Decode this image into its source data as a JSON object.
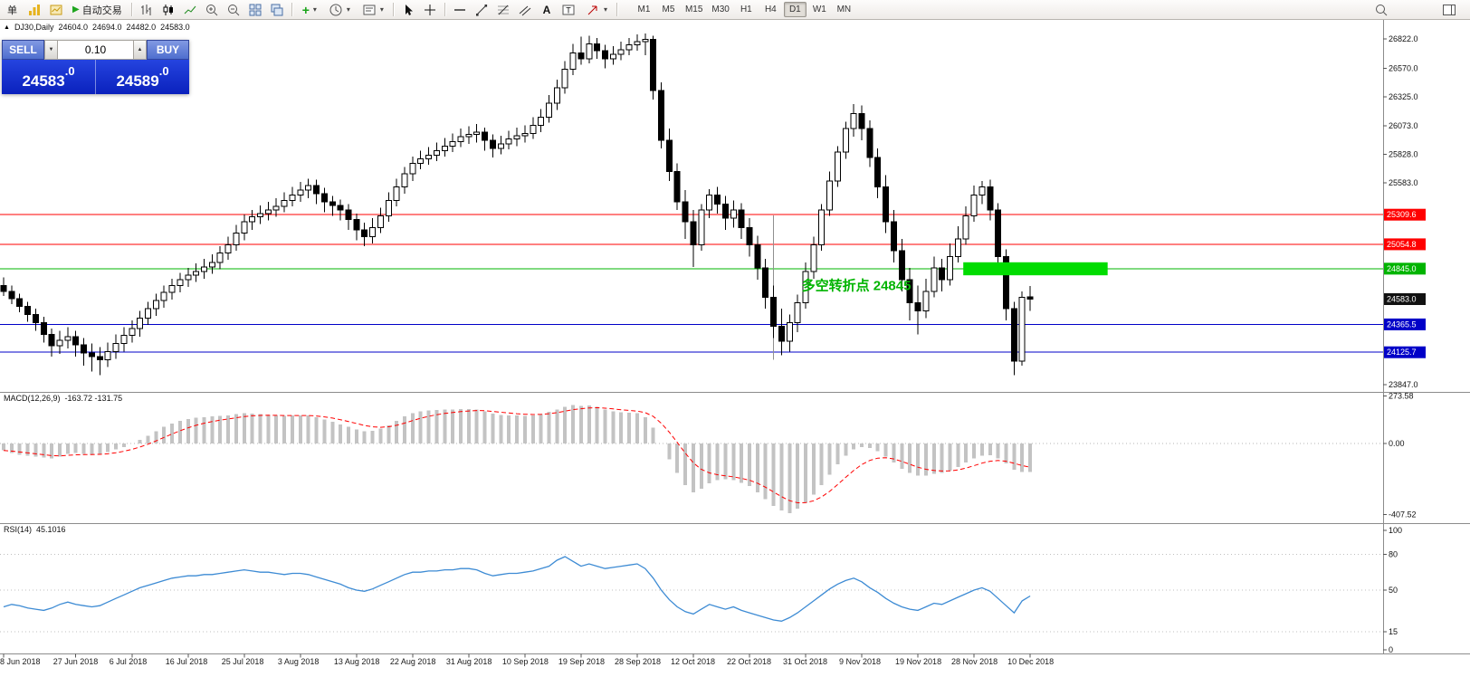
{
  "icons": {
    "dropdown": "▾",
    "play": "▶",
    "collapse": "▲",
    "spin_up": "▲",
    "spin_down": "▼"
  },
  "toolbar": {
    "new_order_label": "单",
    "autotrading_label": "自动交易",
    "timeframes": [
      "M1",
      "M5",
      "M15",
      "M30",
      "H1",
      "H4",
      "D1",
      "W1",
      "MN"
    ],
    "active_timeframe": "D1"
  },
  "symbol_bar": {
    "symbol": "DJ30,Daily",
    "ohlc": [
      "24604.0",
      "24694.0",
      "24482.0",
      "24583.0"
    ]
  },
  "trade_panel": {
    "sell_label": "SELL",
    "buy_label": "BUY",
    "lot": "0.10",
    "sell_price": {
      "main": "24583",
      "frac": ".0"
    },
    "buy_price": {
      "main": "24589",
      "frac": ".0"
    }
  },
  "annotation": {
    "text": "多空转折点 24845",
    "color": "#00b400",
    "anchor_index": 99.5,
    "price": 24660
  },
  "levels": [
    {
      "price": 25309.6,
      "label": "25309.6",
      "color": "#ff0000",
      "line": true
    },
    {
      "price": 25054.8,
      "label": "25054.8",
      "color": "#ff0000",
      "line": true
    },
    {
      "price": 24845.0,
      "label": "24845.0",
      "color": "#00b400",
      "line": true
    },
    {
      "price": 24583.0,
      "label": "24583.0",
      "color": "#111111",
      "line": false
    },
    {
      "price": 24365.5,
      "label": "24365.5",
      "color": "#0000c8",
      "line": true
    },
    {
      "price": 24125.7,
      "label": "24125.7",
      "color": "#0000c8",
      "line": true
    }
  ],
  "y_axis": {
    "ticks": [
      {
        "label": "26822.0",
        "value": 26822.0
      },
      {
        "label": "26570.0",
        "value": 26570.0
      },
      {
        "label": "26325.0",
        "value": 26325.0
      },
      {
        "label": "26073.0",
        "value": 26073.0
      },
      {
        "label": "25828.0",
        "value": 25828.0
      },
      {
        "label": "25583.0",
        "value": 25583.0
      },
      {
        "label": "23847.0",
        "value": 23847.0
      }
    ]
  },
  "macd_panel": {
    "name": "MACD(12,26,9)",
    "values_text": "-163.72 -131.75",
    "scale": [
      {
        "label": "273.58",
        "value": 273.58
      },
      {
        "label": "0.00",
        "value": 0
      },
      {
        "label": "-407.52",
        "value": -407.52
      }
    ]
  },
  "rsi_panel": {
    "name": "RSI(14)",
    "value_text": "45.1016",
    "scale": [
      {
        "label": "100",
        "value": 100
      },
      {
        "label": "80",
        "value": 80
      },
      {
        "label": "50",
        "value": 50
      },
      {
        "label": "15",
        "value": 15
      },
      {
        "label": "0",
        "value": 0
      }
    ],
    "level_lines": [
      80,
      50,
      15
    ]
  },
  "time_axis": {
    "labels": [
      "8 Jun 2018",
      "27 Jun 2018",
      "6 Jul 2018",
      "16 Jul 2018",
      "25 Jul 2018",
      "3 Aug 2018",
      "13 Aug 2018",
      "22 Aug 2018",
      "31 Aug 2018",
      "10 Sep 2018",
      "19 Sep 2018",
      "28 Sep 2018",
      "12 Oct 2018",
      "22 Oct 2018",
      "31 Oct 2018",
      "9 Nov 2018",
      "19 Nov 2018",
      "28 Nov 2018",
      "10 Dec 2018"
    ],
    "indices": [
      0,
      9,
      16,
      23,
      30,
      37,
      44,
      51,
      58,
      65,
      72,
      79,
      86,
      93,
      100,
      107,
      114,
      121,
      128
    ]
  },
  "chart_data": {
    "type": "candlestick",
    "symbol": "DJ30",
    "timeframe": "Daily",
    "title": "DJ30,Daily 24604.0 24694.0 24482.0 24583.0",
    "candles": [
      [
        24700,
        24770,
        24610,
        24650
      ],
      [
        24650,
        24700,
        24540,
        24585
      ],
      [
        24585,
        24630,
        24470,
        24520
      ],
      [
        24520,
        24560,
        24390,
        24450
      ],
      [
        24450,
        24500,
        24310,
        24380
      ],
      [
        24380,
        24430,
        24210,
        24280
      ],
      [
        24280,
        24330,
        24090,
        24180
      ],
      [
        24180,
        24310,
        24110,
        24230
      ],
      [
        24230,
        24340,
        24160,
        24260
      ],
      [
        24260,
        24310,
        24090,
        24190
      ],
      [
        24190,
        24250,
        24010,
        24120
      ],
      [
        24120,
        24200,
        23960,
        24090
      ],
      [
        24090,
        24170,
        23930,
        24060
      ],
      [
        24060,
        24210,
        24000,
        24130
      ],
      [
        24130,
        24280,
        24070,
        24200
      ],
      [
        24200,
        24340,
        24130,
        24270
      ],
      [
        24270,
        24400,
        24210,
        24330
      ],
      [
        24330,
        24480,
        24260,
        24420
      ],
      [
        24420,
        24560,
        24360,
        24500
      ],
      [
        24500,
        24630,
        24440,
        24570
      ],
      [
        24570,
        24700,
        24510,
        24640
      ],
      [
        24640,
        24760,
        24580,
        24700
      ],
      [
        24700,
        24810,
        24640,
        24750
      ],
      [
        24750,
        24850,
        24690,
        24790
      ],
      [
        24790,
        24890,
        24730,
        24820
      ],
      [
        24820,
        24930,
        24760,
        24860
      ],
      [
        24860,
        24970,
        24800,
        24900
      ],
      [
        24900,
        25040,
        24840,
        24980
      ],
      [
        24980,
        25120,
        24920,
        25050
      ],
      [
        25050,
        25220,
        25000,
        25150
      ],
      [
        25150,
        25310,
        25090,
        25250
      ],
      [
        25250,
        25350,
        25180,
        25290
      ],
      [
        25290,
        25390,
        25230,
        25320
      ],
      [
        25320,
        25420,
        25260,
        25350
      ],
      [
        25350,
        25450,
        25290,
        25380
      ],
      [
        25380,
        25500,
        25330,
        25430
      ],
      [
        25430,
        25550,
        25380,
        25480
      ],
      [
        25480,
        25590,
        25420,
        25520
      ],
      [
        25520,
        25620,
        25450,
        25560
      ],
      [
        25560,
        25610,
        25400,
        25490
      ],
      [
        25490,
        25540,
        25330,
        25420
      ],
      [
        25420,
        25470,
        25300,
        25390
      ],
      [
        25390,
        25440,
        25260,
        25350
      ],
      [
        25350,
        25400,
        25180,
        25270
      ],
      [
        25270,
        25320,
        25090,
        25180
      ],
      [
        25180,
        25240,
        25040,
        25120
      ],
      [
        25120,
        25280,
        25060,
        25200
      ],
      [
        25200,
        25370,
        25150,
        25300
      ],
      [
        25300,
        25500,
        25250,
        25430
      ],
      [
        25430,
        25620,
        25380,
        25550
      ],
      [
        25550,
        25720,
        25490,
        25660
      ],
      [
        25660,
        25810,
        25600,
        25750
      ],
      [
        25750,
        25860,
        25700,
        25790
      ],
      [
        25790,
        25890,
        25740,
        25820
      ],
      [
        25820,
        25930,
        25770,
        25860
      ],
      [
        25860,
        25970,
        25810,
        25900
      ],
      [
        25900,
        26010,
        25850,
        25940
      ],
      [
        25940,
        26050,
        25890,
        25980
      ],
      [
        25980,
        26070,
        25920,
        26000
      ],
      [
        26000,
        26090,
        25930,
        26020
      ],
      [
        26020,
        26060,
        25860,
        25950
      ],
      [
        25950,
        26000,
        25800,
        25880
      ],
      [
        25880,
        25990,
        25830,
        25920
      ],
      [
        25920,
        26030,
        25870,
        25960
      ],
      [
        25960,
        26060,
        25900,
        25990
      ],
      [
        25990,
        26080,
        25930,
        26010
      ],
      [
        26010,
        26150,
        25960,
        26080
      ],
      [
        26080,
        26220,
        26020,
        26150
      ],
      [
        26150,
        26340,
        26100,
        26270
      ],
      [
        26270,
        26470,
        26210,
        26400
      ],
      [
        26400,
        26630,
        26350,
        26560
      ],
      [
        26560,
        26780,
        26510,
        26700
      ],
      [
        26700,
        26840,
        26600,
        26650
      ],
      [
        26650,
        26850,
        26610,
        26780
      ],
      [
        26780,
        26830,
        26650,
        26720
      ],
      [
        26720,
        26770,
        26570,
        26650
      ],
      [
        26650,
        26760,
        26600,
        26690
      ],
      [
        26690,
        26800,
        26640,
        26730
      ],
      [
        26730,
        26830,
        26680,
        26770
      ],
      [
        26770,
        26860,
        26720,
        26800
      ],
      [
        26800,
        26870,
        26680,
        26820
      ],
      [
        26820,
        26850,
        26300,
        26380
      ],
      [
        26380,
        26450,
        25880,
        25950
      ],
      [
        25950,
        26050,
        25600,
        25680
      ],
      [
        25680,
        25750,
        25350,
        25420
      ],
      [
        25420,
        25520,
        25100,
        25250
      ],
      [
        25250,
        25350,
        24860,
        25050
      ],
      [
        25050,
        25400,
        25000,
        25350
      ],
      [
        25350,
        25530,
        25280,
        25480
      ],
      [
        25480,
        25550,
        25320,
        25400
      ],
      [
        25400,
        25470,
        25180,
        25280
      ],
      [
        25280,
        25430,
        25200,
        25350
      ],
      [
        25350,
        25410,
        25100,
        25200
      ],
      [
        25200,
        25280,
        24950,
        25050
      ],
      [
        25050,
        25130,
        24750,
        24850
      ],
      [
        24850,
        24930,
        24500,
        24600
      ],
      [
        24600,
        24700,
        24250,
        24350
      ],
      [
        24350,
        24500,
        24100,
        24220
      ],
      [
        24220,
        24450,
        24130,
        24380
      ],
      [
        24380,
        24620,
        24300,
        24550
      ],
      [
        24550,
        24900,
        24500,
        24820
      ],
      [
        24820,
        25120,
        24760,
        25050
      ],
      [
        25050,
        25400,
        25000,
        25350
      ],
      [
        25350,
        25680,
        25300,
        25600
      ],
      [
        25600,
        25900,
        25550,
        25850
      ],
      [
        25850,
        26110,
        25790,
        26050
      ],
      [
        26050,
        26260,
        25980,
        26180
      ],
      [
        26180,
        26250,
        25950,
        26050
      ],
      [
        26050,
        26120,
        25720,
        25800
      ],
      [
        25800,
        25880,
        25450,
        25550
      ],
      [
        25550,
        25650,
        25150,
        25250
      ],
      [
        25250,
        25350,
        24900,
        25000
      ],
      [
        25000,
        25100,
        24650,
        24750
      ],
      [
        24750,
        24850,
        24400,
        24550
      ],
      [
        24550,
        24700,
        24280,
        24480
      ],
      [
        24480,
        24760,
        24420,
        24650
      ],
      [
        24650,
        24950,
        24600,
        24850
      ],
      [
        24850,
        24930,
        24650,
        24750
      ],
      [
        24750,
        25060,
        24700,
        24950
      ],
      [
        24950,
        25210,
        24900,
        25100
      ],
      [
        25100,
        25380,
        25050,
        25300
      ],
      [
        25300,
        25560,
        25250,
        25480
      ],
      [
        25480,
        25600,
        25400,
        25550
      ],
      [
        25550,
        25610,
        25260,
        25350
      ],
      [
        25350,
        25410,
        24850,
        24950
      ],
      [
        24950,
        25010,
        24400,
        24500
      ],
      [
        24500,
        24560,
        23930,
        24050
      ],
      [
        24050,
        24650,
        24010,
        24600
      ],
      [
        24604,
        24694,
        24482,
        24583
      ]
    ],
    "macd": [
      -40,
      -55,
      -65,
      -70,
      -75,
      -80,
      -85,
      -75,
      -60,
      -55,
      -60,
      -62,
      -60,
      -50,
      -35,
      -20,
      0,
      20,
      45,
      70,
      95,
      115,
      130,
      140,
      148,
      152,
      155,
      158,
      162,
      168,
      175,
      172,
      168,
      165,
      160,
      158,
      160,
      162,
      160,
      150,
      138,
      125,
      110,
      95,
      80,
      70,
      72,
      85,
      105,
      130,
      155,
      175,
      185,
      190,
      193,
      195,
      196,
      197,
      198,
      196,
      185,
      172,
      165,
      162,
      160,
      158,
      162,
      170,
      182,
      196,
      210,
      222,
      215,
      218,
      210,
      195,
      185,
      180,
      178,
      175,
      150,
      90,
      0,
      -90,
      -170,
      -240,
      -280,
      -260,
      -230,
      -210,
      -205,
      -210,
      -225,
      -245,
      -280,
      -320,
      -360,
      -385,
      -400,
      -375,
      -340,
      -295,
      -240,
      -180,
      -120,
      -70,
      -35,
      -20,
      -25,
      -45,
      -75,
      -110,
      -145,
      -170,
      -185,
      -185,
      -175,
      -168,
      -155,
      -135,
      -110,
      -85,
      -70,
      -68,
      -85,
      -115,
      -150,
      -165,
      -164
    ],
    "rsi": [
      36,
      38,
      37,
      35,
      34,
      33,
      35,
      38,
      40,
      38,
      37,
      36,
      37,
      40,
      43,
      46,
      49,
      52,
      54,
      56,
      58,
      60,
      61,
      62,
      62,
      63,
      63,
      64,
      65,
      66,
      67,
      66,
      65,
      65,
      64,
      63,
      64,
      64,
      63,
      61,
      59,
      57,
      55,
      52,
      50,
      49,
      51,
      54,
      57,
      60,
      63,
      65,
      65,
      66,
      66,
      67,
      67,
      68,
      68,
      67,
      64,
      62,
      63,
      64,
      64,
      65,
      66,
      68,
      70,
      75,
      78,
      74,
      70,
      72,
      70,
      68,
      69,
      70,
      71,
      72,
      68,
      60,
      50,
      42,
      36,
      32,
      30,
      34,
      38,
      36,
      34,
      36,
      33,
      31,
      29,
      27,
      25,
      24,
      27,
      31,
      36,
      41,
      46,
      51,
      55,
      58,
      60,
      57,
      52,
      48,
      43,
      39,
      36,
      34,
      33,
      36,
      39,
      38,
      41,
      44,
      47,
      50,
      52,
      49,
      43,
      37,
      31,
      41,
      45.1
    ],
    "highlight_box": {
      "from_index": 120,
      "to_index": 138,
      "price_top": 24900,
      "price_bottom": 24788,
      "color": "#00dc00"
    },
    "vline": {
      "index": 96,
      "price_top": 25305,
      "price_bottom": 24060,
      "color": "#909090"
    }
  }
}
